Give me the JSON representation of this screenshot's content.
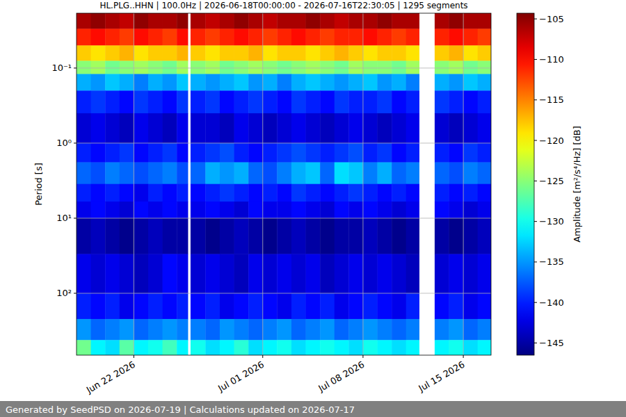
{
  "chart_data": {
    "type": "heatmap",
    "title": "HL.PLG..HHN | 100.0Hz | 2026-06-18T00:00:00 - 2026-07-16T22:30:05 | 1295 segments",
    "y_label": "Period [s]",
    "footer": "Generated by SeedPSD on 2026-07-19 | Calculations updated on 2026-07-17",
    "log": "y",
    "grid": true,
    "xlim": [
      "2026-06-18T00:00:00",
      "2026-07-16T22:30:05"
    ],
    "ylim": [
      0.0186,
      667
    ],
    "xticks": [
      {
        "value": "2026-06-22T00:00:00",
        "label": "Jun 22 2026"
      },
      {
        "value": "2026-07-01T00:00:00",
        "label": "Jul 01 2026"
      },
      {
        "value": "2026-07-08T00:00:00",
        "label": "Jul 08 2026"
      },
      {
        "value": "2026-07-15T00:00:00",
        "label": "Jul 15 2026"
      }
    ],
    "yticks": [
      {
        "value": 0.1,
        "label": "10⁻¹"
      },
      {
        "value": 1,
        "label": "10⁰"
      },
      {
        "value": 10,
        "label": "10¹"
      },
      {
        "value": 100,
        "label": "10²"
      }
    ],
    "x": [
      "2026-06-18T00:00:00",
      "2026-06-19T00:00:00",
      "2026-06-20T00:00:00",
      "2026-06-21T00:00:00",
      "2026-06-22T00:00:00",
      "2026-06-23T00:00:00",
      "2026-06-24T00:00:00",
      "2026-06-25T00:00:00",
      "2026-06-25T18:30:00",
      "2026-06-25T23:00:00",
      "2026-06-27T00:00:00",
      "2026-06-28T00:00:00",
      "2026-06-29T00:00:00",
      "2026-06-30T00:00:00",
      "2026-07-01T00:00:00",
      "2026-07-02T00:00:00",
      "2026-07-03T00:00:00",
      "2026-07-04T00:00:00",
      "2026-07-05T00:00:00",
      "2026-07-06T00:00:00",
      "2026-07-07T00:00:00",
      "2026-07-08T00:00:00",
      "2026-07-09T00:00:00",
      "2026-07-10T00:00:00",
      "2026-07-11T00:00:00",
      "2026-07-11T22:00:00",
      "2026-07-13T00:00:00",
      "2026-07-14T00:00:00",
      "2026-07-15T00:00:00",
      "2026-07-16T00:00:00",
      "2026-07-16T22:30:05"
    ],
    "y": [
      0.0186,
      0.03,
      0.05,
      0.08,
      0.12,
      0.2,
      0.4,
      1,
      1.8,
      3.5,
      6,
      10,
      30,
      100,
      220,
      420,
      667
    ],
    "values": [
      [
        -106,
        -105,
        -106,
        -107,
        -105,
        -106,
        -106,
        -105,
        null,
        -106,
        -107,
        -106,
        -105,
        -106,
        -107,
        -106,
        -106,
        -105,
        -106,
        -107,
        -106,
        -106,
        -105,
        -106,
        -106,
        null,
        -106,
        -105,
        -106,
        -106
      ],
      [
        -111,
        -110,
        -111,
        -112,
        -110,
        -111,
        -112,
        -110,
        null,
        -111,
        -112,
        -111,
        -110,
        -111,
        -112,
        -111,
        -110,
        -111,
        -112,
        -111,
        -111,
        -110,
        -111,
        -112,
        -111,
        null,
        -111,
        -110,
        -111,
        -112
      ],
      [
        -118,
        -119,
        -118,
        -117,
        -119,
        -118,
        -118,
        -117,
        null,
        -118,
        -119,
        -118,
        -118,
        -117,
        -119,
        -118,
        -118,
        -119,
        -118,
        -117,
        -118,
        -119,
        -118,
        -118,
        -119,
        null,
        -118,
        -117,
        -119,
        -118
      ],
      [
        -125,
        -124,
        -126,
        -125,
        -124,
        -125,
        -126,
        -124,
        null,
        -125,
        -124,
        -126,
        -125,
        -124,
        -125,
        -126,
        -125,
        -124,
        -125,
        -126,
        -124,
        -125,
        -125,
        -126,
        -124,
        null,
        -125,
        -124,
        -126,
        -125
      ],
      [
        -134,
        -135,
        -133,
        -134,
        -136,
        -134,
        -135,
        -133,
        null,
        -134,
        -135,
        -134,
        -133,
        -135,
        -134,
        -136,
        -134,
        -133,
        -134,
        -135,
        -134,
        -133,
        -135,
        -134,
        -136,
        null,
        -134,
        -135,
        -133,
        -134
      ],
      [
        -140,
        -139,
        -140,
        -141,
        -139,
        -140,
        -141,
        -139,
        null,
        -140,
        -139,
        -141,
        -140,
        -139,
        -140,
        -141,
        -139,
        -140,
        -141,
        -139,
        -140,
        -140,
        -139,
        -141,
        -140,
        null,
        -139,
        -140,
        -141,
        -140
      ],
      [
        -143,
        -142,
        -143,
        -144,
        -142,
        -143,
        -144,
        -142,
        null,
        -143,
        -143,
        -144,
        -142,
        -143,
        -144,
        -143,
        -142,
        -143,
        -144,
        -143,
        -142,
        -143,
        -144,
        -143,
        -142,
        null,
        -143,
        -144,
        -143,
        -142
      ],
      [
        -140,
        -141,
        -140,
        -139,
        -141,
        -140,
        -139,
        -141,
        null,
        -140,
        -139,
        -138,
        -140,
        -141,
        -140,
        -139,
        -138,
        -139,
        -140,
        -139,
        -138,
        -140,
        -139,
        -141,
        -140,
        null,
        -140,
        -141,
        -139,
        -140
      ],
      [
        -137,
        -138,
        -136,
        -137,
        -138,
        -137,
        -136,
        -138,
        null,
        -137,
        -134,
        -135,
        -134,
        -137,
        -138,
        -136,
        -134,
        -133,
        -137,
        -132,
        -133,
        -136,
        -134,
        -137,
        -136,
        null,
        -137,
        -138,
        -136,
        -137
      ],
      [
        -140,
        -141,
        -140,
        -141,
        -142,
        -140,
        -141,
        -140,
        null,
        -141,
        -140,
        -139,
        -140,
        -141,
        -140,
        -141,
        -139,
        -140,
        -141,
        -140,
        -139,
        -140,
        -141,
        -140,
        -141,
        null,
        -140,
        -141,
        -140,
        -141
      ],
      [
        -142,
        -141,
        -142,
        -143,
        -141,
        -142,
        -141,
        -142,
        null,
        -142,
        -141,
        -142,
        -143,
        -141,
        -142,
        -142,
        -141,
        -142,
        -143,
        -141,
        -142,
        -141,
        -142,
        -143,
        -142,
        null,
        -141,
        -142,
        -143,
        -142
      ],
      [
        -145,
        -144,
        -145,
        -146,
        -145,
        -144,
        -145,
        -145,
        null,
        -145,
        -146,
        -145,
        -144,
        -145,
        -146,
        -145,
        -144,
        -145,
        -146,
        -145,
        -145,
        -144,
        -145,
        -146,
        -145,
        null,
        -145,
        -146,
        -145,
        -144
      ],
      [
        -142,
        -143,
        -142,
        -143,
        -144,
        -143,
        -141,
        -142,
        null,
        -143,
        -142,
        -143,
        -144,
        -142,
        -143,
        -142,
        -143,
        -142,
        -144,
        -143,
        -142,
        -143,
        -142,
        -143,
        -144,
        null,
        -143,
        -142,
        -143,
        -142
      ],
      [
        -140,
        -141,
        -140,
        -142,
        -141,
        -140,
        -141,
        -140,
        null,
        -141,
        -140,
        -142,
        -141,
        -140,
        -141,
        -142,
        -140,
        -141,
        -140,
        -142,
        -141,
        -140,
        -141,
        -142,
        -140,
        null,
        -141,
        -140,
        -142,
        -141
      ],
      [
        -135,
        -137,
        -136,
        -135,
        -137,
        -136,
        -135,
        -136,
        null,
        -136,
        -137,
        -135,
        -136,
        -137,
        -136,
        -135,
        -137,
        -136,
        -135,
        -137,
        -136,
        -135,
        -136,
        -137,
        -136,
        null,
        -136,
        -135,
        -137,
        -136
      ],
      [
        -126,
        -131,
        -132,
        -127,
        -131,
        -130,
        -128,
        -131,
        null,
        -130,
        -132,
        -131,
        -129,
        -132,
        -131,
        -130,
        -132,
        -131,
        -130,
        -131,
        -132,
        -130,
        -131,
        -132,
        -131,
        null,
        -131,
        -130,
        -132,
        -131
      ]
    ],
    "colorbar": {
      "label": "Amplitude [m²/s⁴/Hz] [dB]",
      "range": [
        -146.5,
        -104.3
      ],
      "ticks": [
        {
          "value": -145,
          "label": "−145"
        },
        {
          "value": -140,
          "label": "−140"
        },
        {
          "value": -135,
          "label": "−135"
        },
        {
          "value": -130,
          "label": "−130"
        },
        {
          "value": -125,
          "label": "−125"
        },
        {
          "value": -120,
          "label": "−120"
        },
        {
          "value": -115,
          "label": "−115"
        },
        {
          "value": -110,
          "label": "−110"
        },
        {
          "value": -105,
          "label": "−105"
        }
      ]
    }
  }
}
